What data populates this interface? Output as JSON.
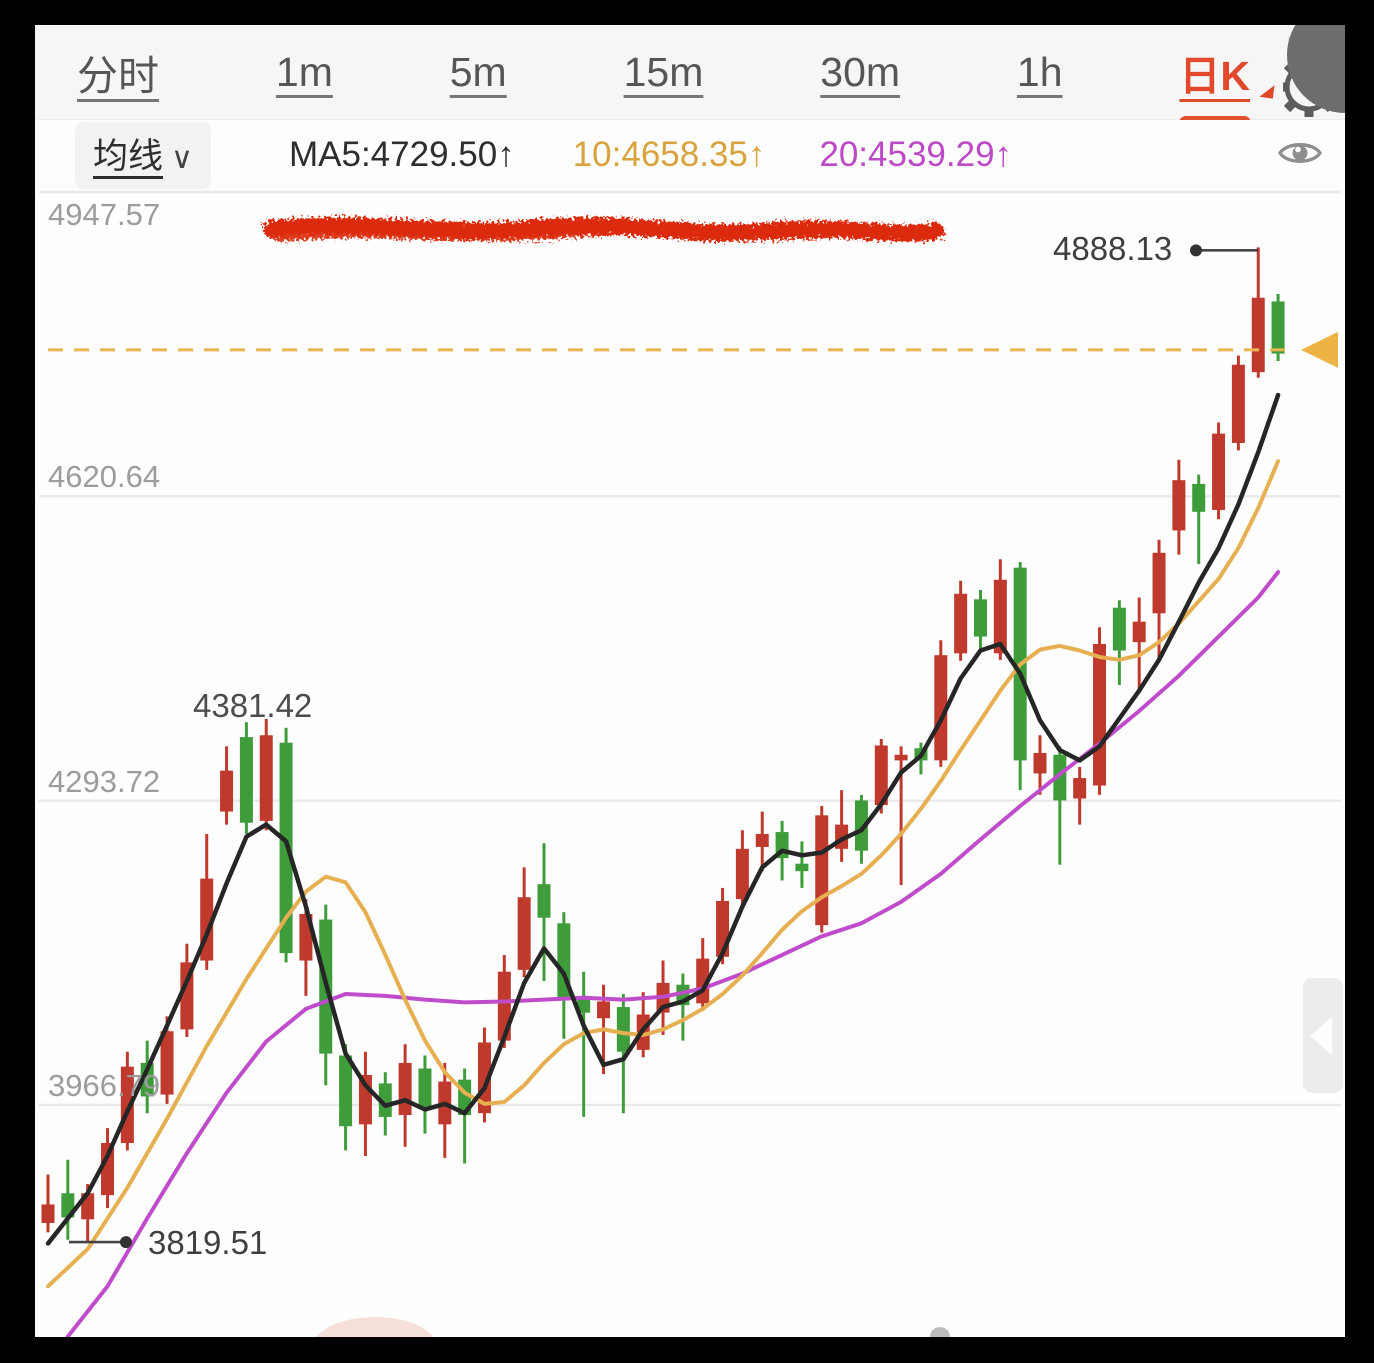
{
  "tabs": {
    "items": [
      {
        "label": "分时"
      },
      {
        "label": "1m"
      },
      {
        "label": "5m"
      },
      {
        "label": "15m"
      },
      {
        "label": "30m"
      },
      {
        "label": "1h"
      }
    ],
    "active": {
      "label": "日K"
    }
  },
  "toolbar": {
    "ma_selector_label": "均线",
    "ma_selector_chevron": "∨",
    "ma5_value": "MA5:4729.50↑",
    "ma10_value": "10:4658.35↑",
    "ma20_value": "20:4539.29↑"
  },
  "axis_labels": {
    "l1": "4947.57",
    "l2": "4620.64",
    "l3": "4293.72",
    "l4": "3966.79"
  },
  "annotations": {
    "high_label": "4888.13",
    "peak_label": "4381.42",
    "low_label": "3819.51"
  },
  "colors": {
    "accent": "#e0492c",
    "bull": "#bf3a2c",
    "bear": "#3f9c3b",
    "ma5": "#262626",
    "ma10": "#e6b052",
    "ma20": "#bf4ccb",
    "grid": "#e9e9e9",
    "axis_text": "#9c9c9c",
    "scribble": "#dc2c10",
    "last_price": "#eab64e",
    "pointer": "#444444"
  },
  "chart_data": {
    "type": "candlestick",
    "convention": "red = up (close>open), green = down",
    "title": "",
    "y_gridline_prices": [
      4947.57,
      4620.64,
      4293.72,
      3966.79
    ],
    "ylim": [
      3700,
      4960
    ],
    "last_price_line": {
      "price": 4778
    },
    "high_annotation": {
      "price": 4888.13
    },
    "low_annotation": {
      "price": 3819.51
    },
    "peak_annotation": {
      "price": 4381.42
    },
    "candles": [
      [
        3840,
        3892,
        3830,
        3860
      ],
      [
        3872,
        3908,
        3822,
        3846
      ],
      [
        3844,
        3882,
        3819.51,
        3872
      ],
      [
        3870,
        3942,
        3856,
        3926
      ],
      [
        3926,
        4024,
        3918,
        4008
      ],
      [
        4012,
        4036,
        3958,
        3976
      ],
      [
        3978,
        4062,
        3968,
        4046
      ],
      [
        4048,
        4140,
        4040,
        4120
      ],
      [
        4122,
        4258,
        4112,
        4210
      ],
      [
        4282,
        4352,
        4268,
        4326
      ],
      [
        4362,
        4378,
        4258,
        4270
      ],
      [
        4272,
        4381.42,
        4262,
        4364
      ],
      [
        4356,
        4372,
        4120,
        4130
      ],
      [
        4122,
        4188,
        4084,
        4172
      ],
      [
        4166,
        4182,
        3988,
        4022
      ],
      [
        4020,
        4032,
        3918,
        3944
      ],
      [
        3946,
        4024,
        3912,
        3999
      ],
      [
        3990,
        4002,
        3934,
        3954
      ],
      [
        3956,
        4032,
        3922,
        4012
      ],
      [
        4006,
        4020,
        3936,
        3964
      ],
      [
        3946,
        4012,
        3910,
        3992
      ],
      [
        3994,
        4006,
        3904,
        3956
      ],
      [
        3958,
        4050,
        3948,
        4034
      ],
      [
        4036,
        4128,
        4028,
        4110
      ],
      [
        4112,
        4222,
        4104,
        4190
      ],
      [
        4204,
        4248,
        4100,
        4168
      ],
      [
        4162,
        4174,
        4038,
        4082
      ],
      [
        4084,
        4110,
        3954,
        4066
      ],
      [
        4060,
        4096,
        4000,
        4078
      ],
      [
        4072,
        4086,
        3958,
        4024
      ],
      [
        4026,
        4088,
        4018,
        4064
      ],
      [
        4066,
        4122,
        4042,
        4098
      ],
      [
        4096,
        4108,
        4036,
        4074
      ],
      [
        4076,
        4146,
        4068,
        4124
      ],
      [
        4126,
        4200,
        4118,
        4186
      ],
      [
        4188,
        4262,
        4180,
        4242
      ],
      [
        4244,
        4282,
        4218,
        4258
      ],
      [
        4260,
        4272,
        4208,
        4232
      ],
      [
        4226,
        4250,
        4200,
        4218
      ],
      [
        4160,
        4288,
        4152,
        4278
      ],
      [
        4242,
        4305,
        4228,
        4268
      ],
      [
        4294,
        4300,
        4226,
        4240
      ],
      [
        4289,
        4360,
        4280,
        4353
      ],
      [
        4337,
        4352,
        4203,
        4343
      ],
      [
        4350,
        4356,
        4322,
        4337
      ],
      [
        4337,
        4466,
        4330,
        4450
      ],
      [
        4452,
        4530,
        4444,
        4516
      ],
      [
        4510,
        4520,
        4456,
        4470
      ],
      [
        4452,
        4553,
        4445,
        4531
      ],
      [
        4544,
        4550,
        4305,
        4337
      ],
      [
        4323,
        4364,
        4300,
        4345
      ],
      [
        4343,
        4352,
        4225,
        4294
      ],
      [
        4296,
        4330,
        4268,
        4318
      ],
      [
        4310,
        4480,
        4300,
        4462
      ],
      [
        4501,
        4509,
        4418,
        4455
      ],
      [
        4464,
        4512,
        4409,
        4486
      ],
      [
        4495,
        4574,
        4448,
        4560
      ],
      [
        4584,
        4660,
        4558,
        4638
      ],
      [
        4634,
        4644,
        4548,
        4604
      ],
      [
        4606,
        4700,
        4596,
        4688
      ],
      [
        4678,
        4772,
        4670,
        4762
      ],
      [
        4754,
        4888.13,
        4748,
        4834
      ],
      [
        4830,
        4838,
        4766,
        4774
      ]
    ],
    "ma_lines": [
      {
        "name": "MA5",
        "points": [
          [
            0,
            3818
          ],
          [
            1,
            3845
          ],
          [
            2,
            3872
          ],
          [
            3,
            3912
          ],
          [
            4,
            3960
          ],
          [
            5,
            4005
          ],
          [
            6,
            4052
          ],
          [
            7,
            4100
          ],
          [
            8,
            4150
          ],
          [
            9,
            4205
          ],
          [
            10,
            4255
          ],
          [
            11,
            4268
          ],
          [
            12,
            4250
          ],
          [
            13,
            4180
          ],
          [
            14,
            4098
          ],
          [
            15,
            4022
          ],
          [
            16,
            3988
          ],
          [
            17,
            3966
          ],
          [
            18,
            3972
          ],
          [
            19,
            3962
          ],
          [
            20,
            3968
          ],
          [
            21,
            3958
          ],
          [
            22,
            3985
          ],
          [
            23,
            4040
          ],
          [
            24,
            4098
          ],
          [
            25,
            4135
          ],
          [
            26,
            4108
          ],
          [
            27,
            4052
          ],
          [
            28,
            4010
          ],
          [
            29,
            4016
          ],
          [
            30,
            4048
          ],
          [
            31,
            4072
          ],
          [
            32,
            4078
          ],
          [
            33,
            4090
          ],
          [
            34,
            4130
          ],
          [
            35,
            4180
          ],
          [
            36,
            4222
          ],
          [
            37,
            4240
          ],
          [
            38,
            4235
          ],
          [
            39,
            4238
          ],
          [
            40,
            4252
          ],
          [
            41,
            4262
          ],
          [
            42,
            4290
          ],
          [
            43,
            4324
          ],
          [
            44,
            4342
          ],
          [
            45,
            4380
          ],
          [
            46,
            4425
          ],
          [
            47,
            4455
          ],
          [
            48,
            4462
          ],
          [
            49,
            4430
          ],
          [
            50,
            4380
          ],
          [
            51,
            4348
          ],
          [
            52,
            4337
          ],
          [
            53,
            4352
          ],
          [
            54,
            4382
          ],
          [
            55,
            4412
          ],
          [
            56,
            4445
          ],
          [
            57,
            4486
          ],
          [
            58,
            4528
          ],
          [
            59,
            4565
          ],
          [
            60,
            4612
          ],
          [
            61,
            4668
          ],
          [
            62,
            4729.5
          ]
        ]
      },
      {
        "name": "MA10",
        "points": [
          [
            0,
            3772
          ],
          [
            2,
            3812
          ],
          [
            4,
            3878
          ],
          [
            6,
            3952
          ],
          [
            8,
            4030
          ],
          [
            10,
            4102
          ],
          [
            12,
            4168
          ],
          [
            13,
            4196
          ],
          [
            14,
            4212
          ],
          [
            15,
            4206
          ],
          [
            16,
            4174
          ],
          [
            17,
            4128
          ],
          [
            18,
            4080
          ],
          [
            19,
            4036
          ],
          [
            20,
            4002
          ],
          [
            21,
            3980
          ],
          [
            22,
            3968
          ],
          [
            23,
            3970
          ],
          [
            24,
            3988
          ],
          [
            25,
            4012
          ],
          [
            26,
            4032
          ],
          [
            27,
            4044
          ],
          [
            28,
            4048
          ],
          [
            29,
            4044
          ],
          [
            30,
            4042
          ],
          [
            31,
            4048
          ],
          [
            32,
            4058
          ],
          [
            33,
            4070
          ],
          [
            34,
            4086
          ],
          [
            35,
            4106
          ],
          [
            36,
            4130
          ],
          [
            37,
            4155
          ],
          [
            38,
            4175
          ],
          [
            39,
            4190
          ],
          [
            40,
            4202
          ],
          [
            41,
            4215
          ],
          [
            42,
            4235
          ],
          [
            43,
            4258
          ],
          [
            44,
            4285
          ],
          [
            45,
            4315
          ],
          [
            46,
            4348
          ],
          [
            47,
            4380
          ],
          [
            48,
            4412
          ],
          [
            49,
            4440
          ],
          [
            50,
            4456
          ],
          [
            51,
            4460
          ],
          [
            52,
            4455
          ],
          [
            53,
            4448
          ],
          [
            54,
            4445
          ],
          [
            55,
            4450
          ],
          [
            56,
            4464
          ],
          [
            57,
            4484
          ],
          [
            58,
            4508
          ],
          [
            59,
            4532
          ],
          [
            60,
            4565
          ],
          [
            61,
            4608
          ],
          [
            62,
            4658.35
          ]
        ]
      },
      {
        "name": "MA20",
        "points": [
          [
            1,
            3718
          ],
          [
            3,
            3772
          ],
          [
            5,
            3845
          ],
          [
            7,
            3915
          ],
          [
            9,
            3980
          ],
          [
            11,
            4035
          ],
          [
            13,
            4070
          ],
          [
            15,
            4086
          ],
          [
            17,
            4084
          ],
          [
            19,
            4080
          ],
          [
            21,
            4077
          ],
          [
            23,
            4078
          ],
          [
            25,
            4080
          ],
          [
            27,
            4082
          ],
          [
            29,
            4080
          ],
          [
            31,
            4083
          ],
          [
            33,
            4092
          ],
          [
            35,
            4108
          ],
          [
            37,
            4128
          ],
          [
            39,
            4148
          ],
          [
            41,
            4162
          ],
          [
            43,
            4185
          ],
          [
            45,
            4215
          ],
          [
            47,
            4252
          ],
          [
            49,
            4288
          ],
          [
            51,
            4322
          ],
          [
            53,
            4355
          ],
          [
            55,
            4390
          ],
          [
            57,
            4428
          ],
          [
            59,
            4470
          ],
          [
            61,
            4512
          ],
          [
            62,
            4539.29
          ]
        ]
      }
    ]
  }
}
